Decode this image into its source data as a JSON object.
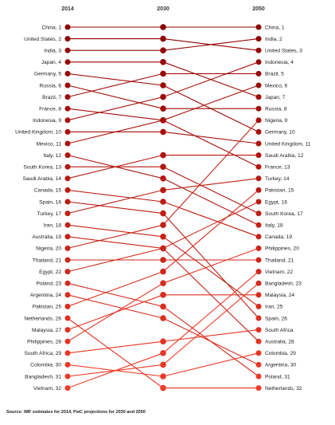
{
  "chart_data": {
    "type": "slope",
    "columns": [
      "2014",
      "2030",
      "2050"
    ],
    "colors": {
      "top": "#8b0000",
      "bottom": "#f03c28"
    },
    "countries": [
      {
        "name": "China",
        "ranks": [
          1,
          1,
          1
        ]
      },
      {
        "name": "United States",
        "ranks": [
          2,
          2,
          3
        ]
      },
      {
        "name": "India",
        "ranks": [
          3,
          3,
          2
        ]
      },
      {
        "name": "Japan",
        "ranks": [
          4,
          4,
          7
        ]
      },
      {
        "name": "Germany",
        "ranks": [
          5,
          6,
          10
        ]
      },
      {
        "name": "Russia",
        "ranks": [
          6,
          8,
          8
        ]
      },
      {
        "name": "Brazil",
        "ranks": [
          7,
          5,
          5
        ]
      },
      {
        "name": "France",
        "ranks": [
          8,
          9,
          13
        ]
      },
      {
        "name": "Indonesia",
        "ranks": [
          9,
          7,
          4
        ]
      },
      {
        "name": "United Kingdom",
        "ranks": [
          10,
          10,
          11
        ]
      },
      {
        "name": "Mexico",
        "ranks": [
          11,
          9,
          6
        ]
      },
      {
        "name": "Italy",
        "ranks": [
          12,
          14,
          18
        ]
      },
      {
        "name": "South Korea",
        "ranks": [
          13,
          13,
          17
        ]
      },
      {
        "name": "Saudi Arabia",
        "ranks": [
          14,
          12,
          12
        ]
      },
      {
        "name": "Canada",
        "ranks": [
          15,
          16,
          19
        ]
      },
      {
        "name": "Spain",
        "ranks": [
          16,
          17,
          26
        ]
      },
      {
        "name": "Turkey",
        "ranks": [
          17,
          15,
          14
        ]
      },
      {
        "name": "Iran",
        "ranks": [
          18,
          19,
          25
        ]
      },
      {
        "name": "Australia",
        "ranks": [
          19,
          20,
          28
        ]
      },
      {
        "name": "Nigeria",
        "ranks": [
          20,
          18,
          9
        ]
      },
      {
        "name": "Thailand",
        "ranks": [
          21,
          21,
          21
        ]
      },
      {
        "name": "Egypt",
        "ranks": [
          22,
          20,
          16
        ]
      },
      {
        "name": "Poland",
        "ranks": [
          23,
          25,
          31
        ]
      },
      {
        "name": "Argentina",
        "ranks": [
          24,
          26,
          30
        ]
      },
      {
        "name": "Pakistan",
        "ranks": [
          25,
          22,
          15
        ]
      },
      {
        "name": "Netherlands",
        "ranks": [
          26,
          32,
          32
        ]
      },
      {
        "name": "Malaysia",
        "ranks": [
          27,
          24,
          24
        ]
      },
      {
        "name": "Philippines",
        "ranks": [
          28,
          23,
          20
        ]
      },
      {
        "name": "South Africa",
        "ranks": [
          29,
          28,
          27
        ]
      },
      {
        "name": "Colombia",
        "ranks": [
          30,
          31,
          29
        ]
      },
      {
        "name": "Bangladesh",
        "ranks": [
          31,
          30,
          23
        ]
      },
      {
        "name": "Vietnam",
        "ranks": [
          32,
          29,
          22
        ]
      }
    ],
    "right_labels": [
      "China, 1",
      "India, 2",
      "United States, 3",
      "Indonesia, 4",
      "Brazil, 5",
      "Mexico, 6",
      "Japan, 7",
      "Russia, 8",
      "Nigeria, 9",
      "Germany, 10",
      "United Kingdom, 11",
      "Saudi Arabia, 12",
      "France, 13",
      "Turkey, 14",
      "Pakistan, 15",
      "Egypt, 16",
      "South Korea, 17",
      "Italy, 18",
      "Canada, 19",
      "Philippines, 20",
      "Thailand, 21",
      "Vietnam, 22",
      "Bangladesh, 23",
      "Malaysia, 24",
      "Iran, 25",
      "Spain, 26",
      "South Africa",
      "Australia, 28",
      "Colombia, 29",
      "Argentina, 30",
      "Poland, 31",
      "Netherlands, 32"
    ],
    "source": "Source: IMF estimates for 2014, PwC projections for 2030 and 2050"
  }
}
